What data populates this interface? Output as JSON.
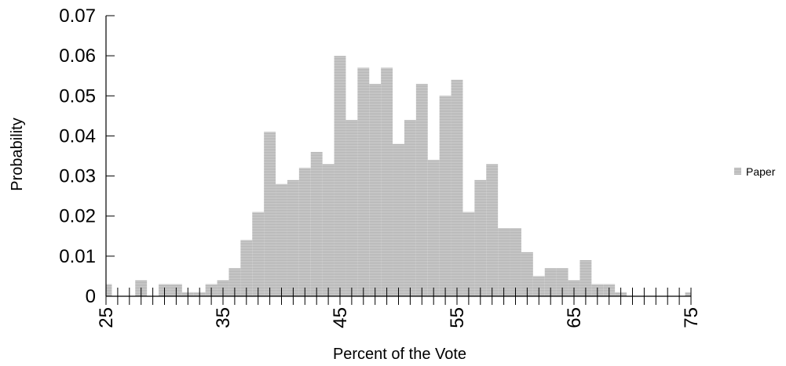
{
  "chart_data": {
    "type": "bar",
    "title": "",
    "xlabel": "Percent of the Vote",
    "ylabel": "Probability",
    "xlim": [
      25,
      75
    ],
    "ylim": [
      0,
      0.07
    ],
    "x_tick_labels": [
      "25",
      "35",
      "45",
      "55",
      "65",
      "75"
    ],
    "y_tick_labels": [
      "0",
      "0.01",
      "0.02",
      "0.03",
      "0.04",
      "0.05",
      "0.06",
      "0.07"
    ],
    "legend_position": "right",
    "grid": false,
    "bar_color": "#c4c4c4",
    "series": [
      {
        "name": "Paper",
        "x": [
          25,
          26,
          27,
          28,
          29,
          30,
          31,
          32,
          33,
          34,
          35,
          36,
          37,
          38,
          39,
          40,
          41,
          42,
          43,
          44,
          45,
          46,
          47,
          48,
          49,
          50,
          51,
          52,
          53,
          54,
          55,
          56,
          57,
          58,
          59,
          60,
          61,
          62,
          63,
          64,
          65,
          66,
          67,
          68,
          69,
          70,
          71,
          72,
          73,
          74,
          75
        ],
        "values": [
          0.003,
          0,
          0,
          0.004,
          0,
          0.003,
          0.003,
          0.001,
          0.001,
          0.003,
          0.004,
          0.007,
          0.014,
          0.021,
          0.041,
          0.028,
          0.029,
          0.032,
          0.036,
          0.033,
          0.06,
          0.044,
          0.057,
          0.053,
          0.057,
          0.038,
          0.044,
          0.053,
          0.034,
          0.05,
          0.054,
          0.021,
          0.029,
          0.033,
          0.017,
          0.017,
          0.011,
          0.005,
          0.007,
          0.007,
          0.004,
          0.009,
          0.003,
          0.003,
          0.001,
          0,
          0,
          0,
          0,
          0,
          0.001
        ]
      }
    ]
  }
}
